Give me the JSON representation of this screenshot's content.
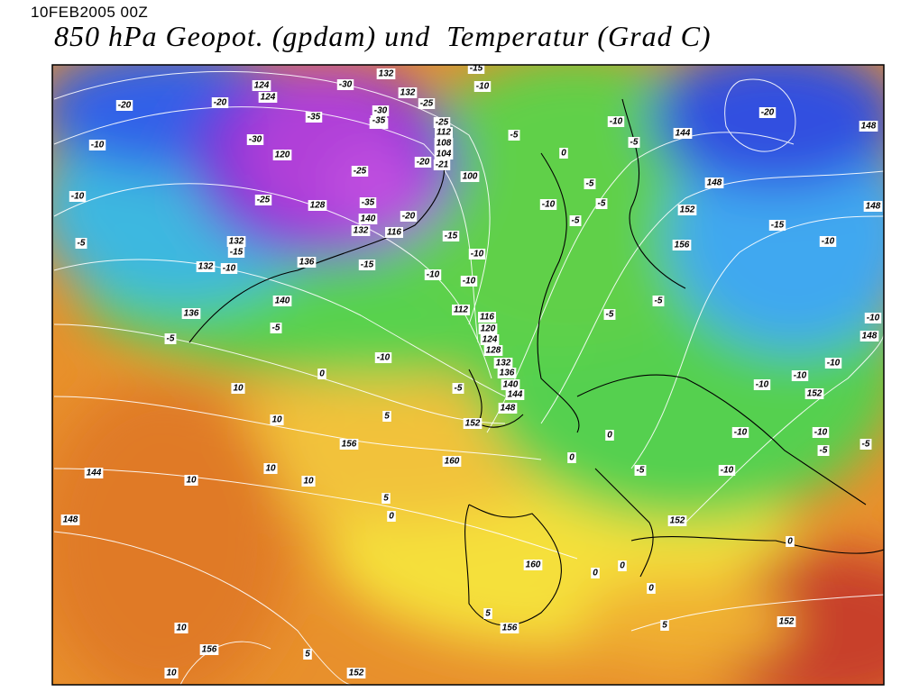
{
  "header": {
    "timestamp": "10FEB2005 00Z",
    "title": "850 hPa Geopot. (gpdam) und  Temperatur (Grad C)"
  },
  "map": {
    "geopotential_labels": [
      132,
      124,
      124,
      120,
      128,
      132,
      132,
      136,
      140,
      136,
      112,
      108,
      104,
      100,
      140,
      132,
      116,
      112,
      116,
      120,
      124,
      128,
      132,
      136,
      140,
      144,
      148,
      152,
      156,
      160,
      144,
      148,
      144,
      148,
      152,
      156,
      148,
      148,
      148,
      152,
      152,
      160,
      156,
      156,
      152,
      152,
      132,
      132
    ],
    "temperature_labels": [
      -20,
      -20,
      -10,
      -10,
      -5,
      -25,
      -15,
      -10,
      -30,
      -35,
      -30,
      -35,
      -30,
      -25,
      -25,
      -20,
      -21,
      -25,
      -35,
      -20,
      -15,
      -15,
      -10,
      -10,
      -10,
      -10,
      -15,
      -5,
      0,
      -5,
      -5,
      -5,
      -10,
      -5,
      -10,
      -20,
      -15,
      -10,
      -10,
      -10,
      -10,
      -10,
      -10,
      -10,
      -5,
      -5,
      -10,
      -5,
      -5,
      -5,
      -5,
      -10,
      -5,
      0,
      -5,
      10,
      10,
      5,
      10,
      10,
      10,
      5,
      0,
      0,
      0,
      0,
      0,
      0,
      0,
      5,
      5,
      5,
      10,
      10
    ]
  }
}
